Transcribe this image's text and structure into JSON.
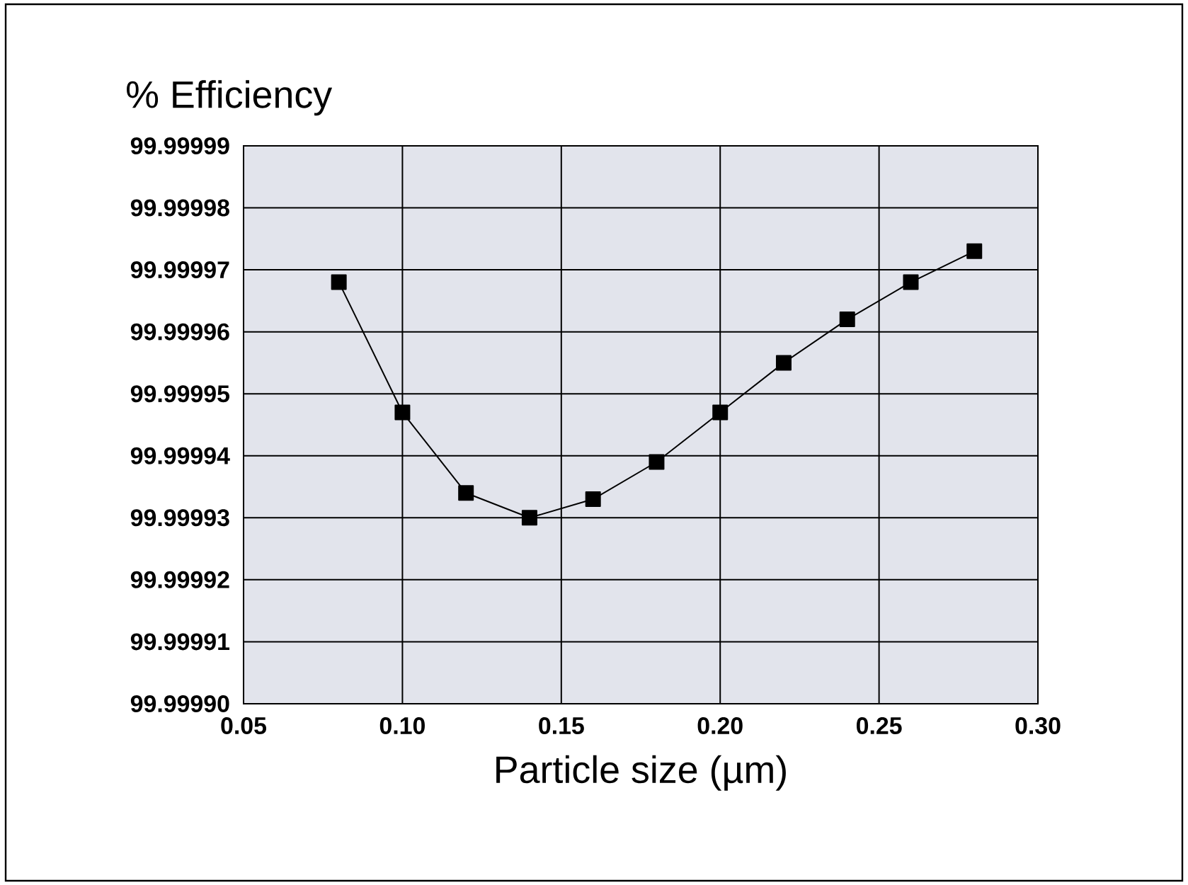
{
  "chart_data": {
    "type": "line",
    "title": "% Efficiency",
    "xlabel": "Particle size (µm)",
    "x": [
      0.08,
      0.1,
      0.12,
      0.14,
      0.16,
      0.18,
      0.2,
      0.22,
      0.24,
      0.26,
      0.28
    ],
    "series": [
      {
        "color": "#000000",
        "values": [
          99.999968,
          99.999947,
          99.999934,
          99.99993,
          99.999933,
          99.999939,
          99.999947,
          99.999955,
          99.999962,
          99.999968,
          99.999973
        ]
      }
    ],
    "xlim": [
      0.05,
      0.3
    ],
    "xticks": [
      {
        "value": 0.05,
        "label": "0.05"
      },
      {
        "value": 0.1,
        "label": "0.10"
      },
      {
        "value": 0.15,
        "label": "0.15"
      },
      {
        "value": 0.2,
        "label": "0.20"
      },
      {
        "value": 0.25,
        "label": "0.25"
      },
      {
        "value": 0.3,
        "label": "0.30"
      }
    ],
    "ylim": [
      99.9999,
      99.99999
    ],
    "yticks": [
      {
        "value": 99.9999,
        "label": "99.99990"
      },
      99.99991,
      99.99992,
      99.99993,
      99.99994,
      99.99995,
      99.99996,
      99.99997,
      99.99998,
      99.99999
    ],
    "grid": true,
    "marker": "square",
    "line_style": "solid"
  }
}
